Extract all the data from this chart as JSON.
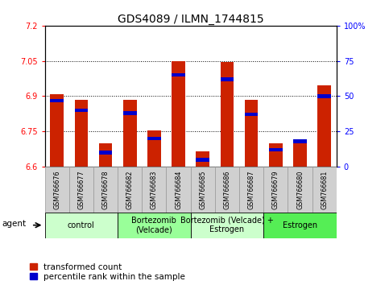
{
  "title": "GDS4089 / ILMN_1744815",
  "samples": [
    "GSM766676",
    "GSM766677",
    "GSM766678",
    "GSM766682",
    "GSM766683",
    "GSM766684",
    "GSM766685",
    "GSM766686",
    "GSM766687",
    "GSM766679",
    "GSM766680",
    "GSM766681"
  ],
  "transformed_counts": [
    6.91,
    6.885,
    6.7,
    6.885,
    6.755,
    7.05,
    6.665,
    7.045,
    6.885,
    6.7,
    6.71,
    6.945
  ],
  "percentile_ranks": [
    47,
    40,
    10,
    38,
    20,
    65,
    5,
    62,
    37,
    12,
    18,
    50
  ],
  "y_min": 6.6,
  "y_max": 7.2,
  "y_ticks": [
    6.6,
    6.75,
    6.9,
    7.05,
    7.2
  ],
  "y_tick_labels": [
    "6.6",
    "6.75",
    "6.9",
    "7.05",
    "7.2"
  ],
  "right_y_ticks": [
    0,
    25,
    50,
    75,
    100
  ],
  "right_y_tick_labels": [
    "0",
    "25",
    "50",
    "75",
    "100%"
  ],
  "groups": [
    {
      "label": "control",
      "start": 0,
      "end": 3,
      "color": "#ccffcc"
    },
    {
      "label": "Bortezomib\n(Velcade)",
      "start": 3,
      "end": 6,
      "color": "#99ff99"
    },
    {
      "label": "Bortezomib (Velcade) +\nEstrogen",
      "start": 6,
      "end": 9,
      "color": "#ccffcc"
    },
    {
      "label": "Estrogen",
      "start": 9,
      "end": 12,
      "color": "#55ee55"
    }
  ],
  "bar_color_red": "#cc2200",
  "bar_color_blue": "#0000cc",
  "bar_width": 0.55,
  "grid_color": "black",
  "plot_bg": "white",
  "agent_label": "agent",
  "legend_red": "transformed count",
  "legend_blue": "percentile rank within the sample",
  "title_fontsize": 10,
  "tick_fontsize": 7,
  "label_fontsize": 7.5,
  "group_fontsize": 7,
  "legend_fontsize": 7.5,
  "xtick_bg": "#d0d0d0",
  "xtick_border": "#999999"
}
